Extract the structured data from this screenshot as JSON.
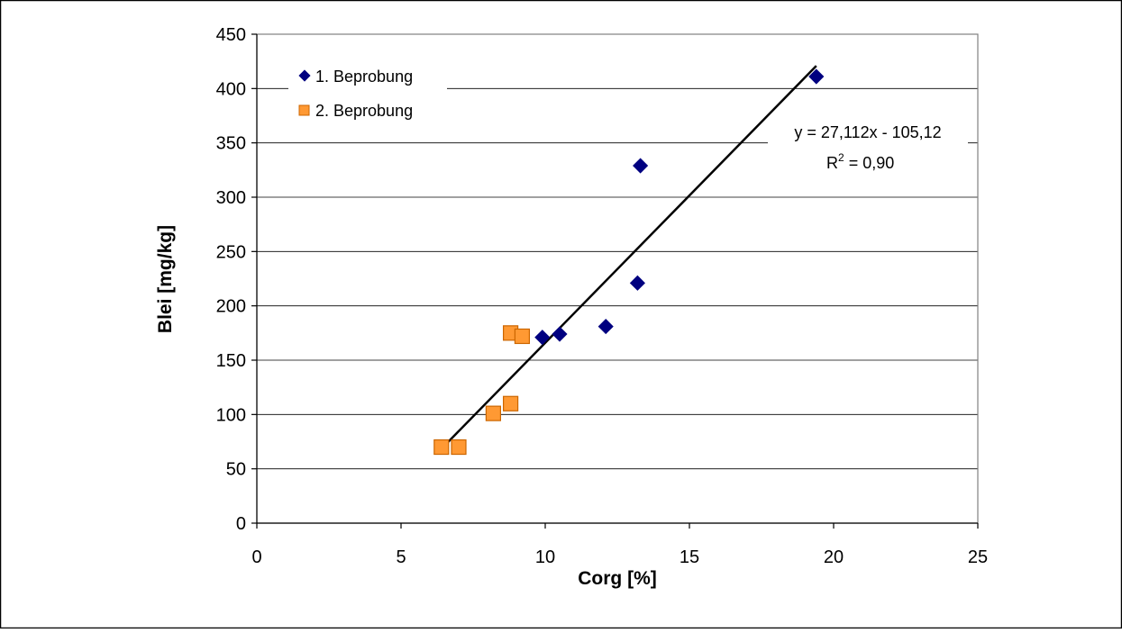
{
  "chart_data": {
    "type": "scatter",
    "xlabel": "Corg [%]",
    "ylabel": "Blei [mg/kg]",
    "xlim": [
      0,
      25
    ],
    "ylim": [
      0,
      450
    ],
    "xticks": [
      0,
      5,
      10,
      15,
      20,
      25
    ],
    "yticks": [
      0,
      50,
      100,
      150,
      200,
      250,
      300,
      350,
      400,
      450
    ],
    "grid": "horizontal",
    "legend_position": "top-left",
    "series": [
      {
        "name": "1. Beprobung",
        "marker": "diamond",
        "color": "#000080",
        "points": [
          [
            9.9,
            171
          ],
          [
            10.5,
            174
          ],
          [
            12.1,
            181
          ],
          [
            13.2,
            221
          ],
          [
            13.3,
            329
          ],
          [
            19.4,
            411
          ]
        ]
      },
      {
        "name": "2. Beprobung",
        "marker": "square",
        "color": "#FF9933",
        "points": [
          [
            6.4,
            70
          ],
          [
            7.0,
            70
          ],
          [
            8.2,
            101
          ],
          [
            8.8,
            110
          ],
          [
            8.8,
            175
          ],
          [
            9.2,
            172
          ]
        ]
      }
    ],
    "trendline": {
      "slope": 27.112,
      "intercept": -105.12,
      "x_range": [
        6.4,
        19.4
      ],
      "equation": "y = 27,112x - 105,12",
      "r2_prefix": "R",
      "r2_superscript": "2",
      "r2_value": " = 0,90"
    }
  }
}
